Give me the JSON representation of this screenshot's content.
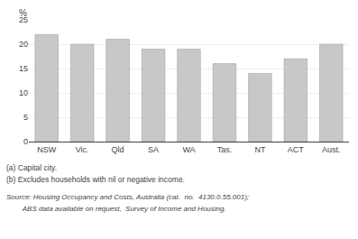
{
  "chart_data": {
    "type": "bar",
    "categories": [
      "NSW",
      "Vic.",
      "Qld",
      "SA",
      "WA",
      "Tas.",
      "NT",
      "ACT",
      "Aust."
    ],
    "values": [
      22,
      20,
      21,
      19,
      19,
      16,
      14,
      17,
      20
    ],
    "color": "#c8c8c8",
    "ylabel": "%",
    "ylim": [
      0,
      25
    ],
    "yticks": [
      0,
      5,
      10,
      15,
      20,
      25
    ],
    "grid": true,
    "annotations": [
      "(a) Capital city.",
      "(b) Excludes households with nil or negative income.",
      "Source: Housing Occupancy and Costs, Australia (cat.  no.  4130.0.55.001);",
      "        ABS data available on request,  Survey of Income and Housing."
    ]
  }
}
